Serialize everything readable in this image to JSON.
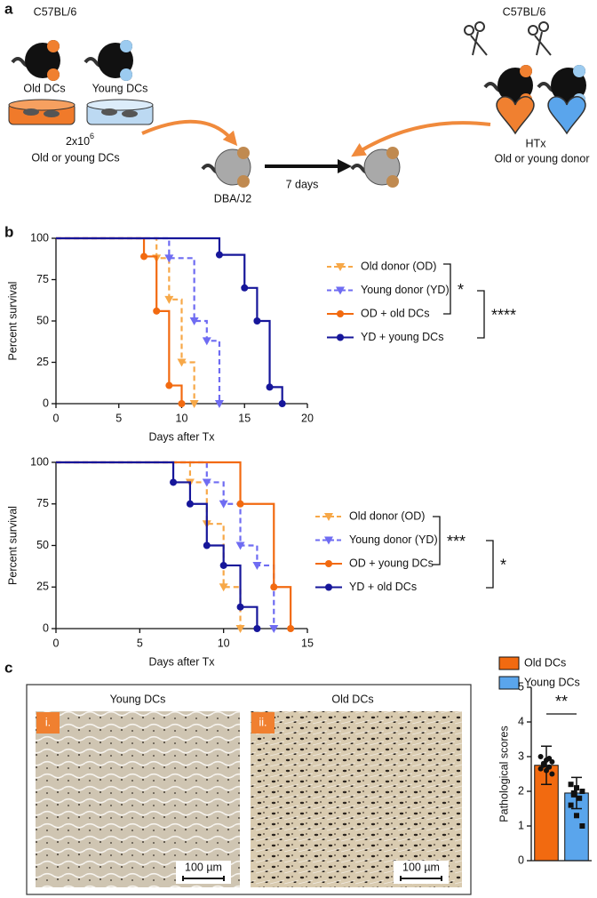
{
  "panel_labels": [
    "a",
    "b",
    "c"
  ],
  "panel_a": {
    "donor_strain_left": "C57BL/6",
    "old_dcs": "Old DCs",
    "young_dcs": "Young DCs",
    "dose": "2x10",
    "dose_exponent": "6",
    "dose_note": "Old or young DCs",
    "recipient": "DBA/J2",
    "interval": "7 days",
    "donor_strain_right": "C57BL/6",
    "htx": "HTx",
    "htx_note": "Old or young donor"
  },
  "chart_data": [
    {
      "type": "survival",
      "xlabel": "Days after Tx",
      "ylabel": "Percent survival",
      "xlim": [
        0,
        20
      ],
      "xticks": [
        0,
        5,
        10,
        15,
        20
      ],
      "ylim": [
        0,
        100
      ],
      "yticks": [
        0,
        25,
        50,
        75,
        100
      ],
      "series": [
        {
          "name": "Old donor (OD)",
          "color": "#f7a848",
          "dashed": true,
          "marker": "triangle-down",
          "x": [
            0,
            8,
            9,
            10,
            11
          ],
          "values": [
            100,
            88,
            63,
            25,
            0
          ]
        },
        {
          "name": "Young donor (YD)",
          "color": "#6f6cf2",
          "dashed": true,
          "marker": "triangle-down",
          "x": [
            0,
            9,
            11,
            12,
            13
          ],
          "values": [
            100,
            88,
            50,
            38,
            0
          ]
        },
        {
          "name": "OD + old DCs",
          "color": "#f26a10",
          "dashed": false,
          "marker": "circle",
          "x": [
            0,
            7,
            8,
            9,
            10
          ],
          "values": [
            100,
            89,
            56,
            11,
            0
          ]
        },
        {
          "name": "YD + young DCs",
          "color": "#16169a",
          "dashed": false,
          "marker": "circle",
          "x": [
            0,
            13,
            15,
            16,
            17,
            18
          ],
          "values": [
            100,
            90,
            70,
            50,
            10,
            0
          ]
        }
      ],
      "annotations": [
        "*",
        "****"
      ]
    },
    {
      "type": "survival",
      "xlabel": "Days after Tx",
      "ylabel": "Percent survival",
      "xlim": [
        0,
        15
      ],
      "xticks": [
        0,
        5,
        10,
        15
      ],
      "ylim": [
        0,
        100
      ],
      "yticks": [
        0,
        25,
        50,
        75,
        100
      ],
      "series": [
        {
          "name": "Old donor (OD)",
          "color": "#f7a848",
          "dashed": true,
          "marker": "triangle-down",
          "x": [
            0,
            8,
            9,
            10,
            11
          ],
          "values": [
            100,
            88,
            63,
            25,
            0
          ]
        },
        {
          "name": "Young donor (YD)",
          "color": "#6f6cf2",
          "dashed": true,
          "marker": "triangle-down",
          "x": [
            0,
            9,
            10,
            11,
            12,
            13
          ],
          "values": [
            100,
            88,
            75,
            50,
            38,
            0
          ]
        },
        {
          "name": "OD + young DCs",
          "color": "#f26a10",
          "dashed": false,
          "marker": "circle",
          "x": [
            0,
            11,
            13,
            14
          ],
          "values": [
            100,
            75,
            25,
            0
          ]
        },
        {
          "name": "YD + old DCs",
          "color": "#16169a",
          "dashed": false,
          "marker": "circle",
          "x": [
            0,
            7,
            8,
            9,
            10,
            11,
            12
          ],
          "values": [
            100,
            88,
            75,
            50,
            38,
            13,
            0
          ]
        }
      ],
      "annotations": [
        "***",
        "*"
      ]
    },
    {
      "type": "bar",
      "ylabel": "Pathological scores",
      "categories": [
        "Old DCs",
        "Young DCs"
      ],
      "colors": [
        "#f26a10",
        "#5aa5ec"
      ],
      "values": [
        2.75,
        1.95
      ],
      "errors": [
        0.55,
        0.45
      ],
      "points": [
        [
          3.0,
          2.9,
          2.85,
          2.75,
          2.7,
          2.65,
          2.6,
          2.5,
          2.8,
          2.95
        ],
        [
          2.2,
          2.1,
          2.0,
          1.9,
          1.8,
          1.6,
          1.3,
          1.0,
          1.95
        ]
      ],
      "ylim": [
        0,
        5
      ],
      "yticks": [
        0,
        1,
        2,
        3,
        4,
        5
      ],
      "annotations": [
        "**"
      ]
    }
  ],
  "panel_c": {
    "images": [
      {
        "title": "Young DCs",
        "tag": "i.",
        "scale": "100 µm"
      },
      {
        "title": "Old DCs",
        "tag": "ii.",
        "scale": "100 µm"
      }
    ]
  }
}
